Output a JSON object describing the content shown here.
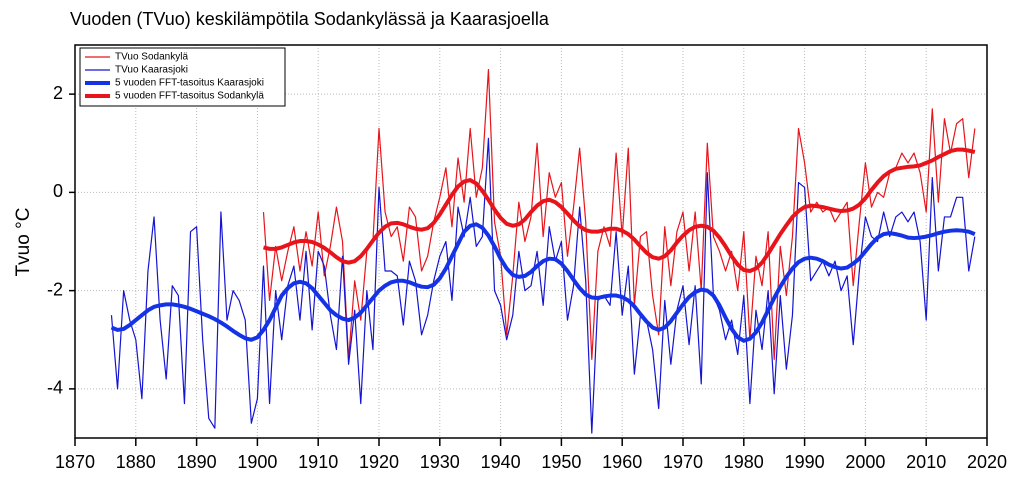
{
  "chart_data": {
    "type": "line",
    "title": "Vuoden (TVuo) keskilämpötila Sodankylässä ja Kaarasjoella",
    "y_label": "Tvuo °C",
    "xlim": [
      1870,
      2020
    ],
    "xticks": [
      1870,
      1880,
      1890,
      1900,
      1910,
      1920,
      1930,
      1940,
      1950,
      1960,
      1970,
      1980,
      1990,
      2000,
      2010,
      2020
    ],
    "ylim": [
      -5,
      3
    ],
    "yticks": [
      -4,
      -2,
      0,
      2
    ],
    "grid": true,
    "legend": "upper left",
    "x": [
      1876,
      1877,
      1878,
      1879,
      1880,
      1881,
      1882,
      1883,
      1884,
      1885,
      1886,
      1887,
      1888,
      1889,
      1890,
      1891,
      1892,
      1893,
      1894,
      1895,
      1896,
      1897,
      1898,
      1899,
      1900,
      1901,
      1902,
      1903,
      1904,
      1905,
      1906,
      1907,
      1908,
      1909,
      1910,
      1911,
      1912,
      1913,
      1914,
      1915,
      1916,
      1917,
      1918,
      1919,
      1920,
      1921,
      1922,
      1923,
      1924,
      1925,
      1926,
      1927,
      1928,
      1929,
      1930,
      1931,
      1932,
      1933,
      1934,
      1935,
      1936,
      1937,
      1938,
      1939,
      1940,
      1941,
      1942,
      1943,
      1944,
      1945,
      1946,
      1947,
      1948,
      1949,
      1950,
      1951,
      1952,
      1953,
      1954,
      1955,
      1956,
      1957,
      1958,
      1959,
      1960,
      1961,
      1962,
      1963,
      1964,
      1965,
      1966,
      1967,
      1968,
      1969,
      1970,
      1971,
      1972,
      1973,
      1974,
      1975,
      1976,
      1977,
      1978,
      1979,
      1980,
      1981,
      1982,
      1983,
      1984,
      1985,
      1986,
      1987,
      1988,
      1989,
      1990,
      1991,
      1992,
      1993,
      1994,
      1995,
      1996,
      1997,
      1998,
      1999,
      2000,
      2001,
      2002,
      2003,
      2004,
      2005,
      2006,
      2007,
      2008,
      2009,
      2010,
      2011,
      2012,
      2013,
      2014,
      2015,
      2016,
      2017,
      2018
    ],
    "series": [
      {
        "name": "TVuo Sodankylä",
        "color": "#e8141b",
        "line_width": 1.2,
        "values": [
          null,
          null,
          null,
          null,
          null,
          null,
          null,
          null,
          null,
          null,
          null,
          null,
          null,
          null,
          null,
          null,
          null,
          null,
          null,
          null,
          null,
          null,
          null,
          null,
          null,
          -0.4,
          -2.2,
          -1.1,
          -1.8,
          -1.2,
          -0.7,
          -1.6,
          -0.8,
          -1.5,
          -0.4,
          -1.7,
          -1.1,
          -0.3,
          -1.0,
          -3.4,
          -1.8,
          -2.6,
          -1.2,
          -1.0,
          1.3,
          -0.4,
          -0.9,
          -0.7,
          -1.4,
          -0.3,
          -0.5,
          -1.6,
          -1.3,
          -0.6,
          -0.1,
          0.5,
          -0.7,
          0.7,
          -0.2,
          1.3,
          -0.1,
          0.5,
          2.5,
          -0.6,
          -1.3,
          -2.9,
          -1.7,
          -0.2,
          -1.0,
          -0.5,
          1.0,
          -0.9,
          0.4,
          -0.1,
          0.2,
          -1.3,
          -0.3,
          0.9,
          -0.6,
          -3.4,
          -1.2,
          -0.7,
          -1.1,
          0.8,
          -0.9,
          0.9,
          -2.3,
          -0.9,
          -0.8,
          -2.1,
          -2.9,
          -0.7,
          -1.9,
          -0.8,
          -0.4,
          -1.6,
          -0.4,
          -2.0,
          1.0,
          -0.9,
          -1.2,
          -1.6,
          -1.2,
          -2.0,
          -0.8,
          -3.0,
          -1.3,
          -1.9,
          -0.8,
          -3.4,
          -1.1,
          -2.1,
          -0.9,
          1.3,
          0.6,
          -0.4,
          -0.2,
          -0.4,
          -0.3,
          -0.6,
          -0.4,
          -0.2,
          -1.9,
          -0.6,
          0.6,
          -0.3,
          0.0,
          -0.1,
          0.4,
          0.5,
          0.8,
          0.6,
          0.8,
          0.4,
          -0.4,
          1.7,
          -0.2,
          1.5,
          0.8,
          1.4,
          1.5,
          0.3,
          1.3
        ]
      },
      {
        "name": "TVuo Kaarasjoki",
        "color": "#1414d2",
        "line_width": 1.2,
        "values": [
          -2.5,
          -4.0,
          -2.0,
          -2.6,
          -3.0,
          -4.2,
          -1.6,
          -0.5,
          -2.6,
          -3.8,
          -1.9,
          -2.1,
          -4.3,
          -0.8,
          -0.7,
          -3.0,
          -4.6,
          -4.8,
          -0.4,
          -2.6,
          -2.0,
          -2.2,
          -2.6,
          -4.7,
          -4.2,
          -1.5,
          -4.3,
          -2.0,
          -3.0,
          -1.9,
          -1.5,
          -2.6,
          -1.2,
          -2.8,
          -1.2,
          -1.5,
          -2.5,
          -3.2,
          -1.3,
          -3.5,
          -2.4,
          -4.3,
          -2.0,
          -3.2,
          0.1,
          -1.6,
          -1.6,
          -1.7,
          -2.7,
          -1.4,
          -1.8,
          -2.9,
          -2.5,
          -1.8,
          -1.3,
          -1.0,
          -2.2,
          -0.3,
          -0.9,
          -0.1,
          -1.1,
          -0.9,
          1.1,
          -2.0,
          -2.3,
          -3.0,
          -2.5,
          -1.2,
          -2.0,
          -1.9,
          -1.2,
          -2.3,
          -0.7,
          -1.4,
          -1.0,
          -2.6,
          -1.9,
          -0.3,
          -1.8,
          -4.9,
          -2.2,
          -2.1,
          -2.3,
          -0.8,
          -2.5,
          -1.5,
          -3.7,
          -2.5,
          -2.6,
          -3.2,
          -4.4,
          -2.2,
          -3.5,
          -2.4,
          -1.9,
          -3.1,
          -1.9,
          -3.9,
          0.4,
          -2.1,
          -2.4,
          -3.0,
          -2.6,
          -3.3,
          -2.1,
          -4.3,
          -2.4,
          -3.2,
          -2.0,
          -4.1,
          -2.1,
          -3.6,
          -2.5,
          0.2,
          0.1,
          -1.8,
          -1.6,
          -1.4,
          -1.7,
          -1.4,
          -2.0,
          -1.7,
          -3.1,
          -1.6,
          -0.5,
          -0.9,
          -1.0,
          -0.4,
          -0.9,
          -0.5,
          -0.4,
          -0.6,
          -0.4,
          -1.0,
          -2.6,
          0.3,
          -1.6,
          -0.5,
          -0.5,
          -0.1,
          -0.1,
          -1.6,
          -0.9
        ]
      },
      {
        "name": "5 vuoden FFT-tasoitus Kaarasjoki",
        "color": "#1432e6",
        "line_width": 4,
        "values": [
          -2.75,
          -2.8,
          -2.78,
          -2.7,
          -2.6,
          -2.5,
          -2.4,
          -2.33,
          -2.3,
          -2.28,
          -2.28,
          -2.3,
          -2.33,
          -2.37,
          -2.42,
          -2.47,
          -2.52,
          -2.58,
          -2.65,
          -2.73,
          -2.82,
          -2.9,
          -2.97,
          -3.0,
          -2.95,
          -2.8,
          -2.6,
          -2.35,
          -2.1,
          -1.95,
          -1.85,
          -1.82,
          -1.85,
          -1.95,
          -2.1,
          -2.25,
          -2.4,
          -2.5,
          -2.57,
          -2.6,
          -2.55,
          -2.45,
          -2.3,
          -2.15,
          -2.0,
          -1.9,
          -1.83,
          -1.8,
          -1.8,
          -1.83,
          -1.88,
          -1.92,
          -1.93,
          -1.88,
          -1.75,
          -1.55,
          -1.3,
          -1.05,
          -0.8,
          -0.68,
          -0.65,
          -0.72,
          -0.88,
          -1.1,
          -1.35,
          -1.55,
          -1.68,
          -1.72,
          -1.7,
          -1.62,
          -1.5,
          -1.4,
          -1.35,
          -1.36,
          -1.45,
          -1.6,
          -1.78,
          -1.95,
          -2.08,
          -2.14,
          -2.15,
          -2.12,
          -2.1,
          -2.1,
          -2.13,
          -2.2,
          -2.32,
          -2.48,
          -2.63,
          -2.75,
          -2.8,
          -2.75,
          -2.62,
          -2.45,
          -2.28,
          -2.13,
          -2.03,
          -1.98,
          -2.0,
          -2.1,
          -2.3,
          -2.55,
          -2.78,
          -2.95,
          -3.02,
          -2.98,
          -2.85,
          -2.65,
          -2.4,
          -2.15,
          -1.92,
          -1.72,
          -1.55,
          -1.42,
          -1.35,
          -1.33,
          -1.35,
          -1.4,
          -1.47,
          -1.52,
          -1.55,
          -1.53,
          -1.45,
          -1.35,
          -1.2,
          -1.05,
          -0.92,
          -0.85,
          -0.83,
          -0.85,
          -0.88,
          -0.92,
          -0.93,
          -0.92,
          -0.9,
          -0.87,
          -0.83,
          -0.8,
          -0.78,
          -0.77,
          -0.78,
          -0.8,
          -0.85
        ]
      },
      {
        "name": "5 vuoden FFT-tasoitus Sodankylä",
        "color": "#e8141b",
        "line_width": 4,
        "values": [
          null,
          null,
          null,
          null,
          null,
          null,
          null,
          null,
          null,
          null,
          null,
          null,
          null,
          null,
          null,
          null,
          null,
          null,
          null,
          null,
          null,
          null,
          null,
          null,
          null,
          -1.12,
          -1.15,
          -1.15,
          -1.12,
          -1.07,
          -1.02,
          -0.99,
          -0.99,
          -1.01,
          -1.06,
          -1.13,
          -1.22,
          -1.32,
          -1.4,
          -1.43,
          -1.4,
          -1.3,
          -1.15,
          -0.98,
          -0.82,
          -0.7,
          -0.63,
          -0.62,
          -0.65,
          -0.7,
          -0.74,
          -0.76,
          -0.73,
          -0.62,
          -0.45,
          -0.25,
          -0.05,
          0.12,
          0.22,
          0.25,
          0.18,
          0.03,
          -0.15,
          -0.35,
          -0.52,
          -0.64,
          -0.68,
          -0.65,
          -0.55,
          -0.4,
          -0.27,
          -0.18,
          -0.15,
          -0.2,
          -0.3,
          -0.43,
          -0.57,
          -0.69,
          -0.77,
          -0.8,
          -0.8,
          -0.77,
          -0.74,
          -0.74,
          -0.78,
          -0.85,
          -0.96,
          -1.1,
          -1.23,
          -1.32,
          -1.35,
          -1.3,
          -1.18,
          -1.02,
          -0.88,
          -0.77,
          -0.7,
          -0.68,
          -0.7,
          -0.78,
          -0.92,
          -1.1,
          -1.3,
          -1.47,
          -1.58,
          -1.6,
          -1.55,
          -1.43,
          -1.25,
          -1.05,
          -0.85,
          -0.67,
          -0.5,
          -0.38,
          -0.3,
          -0.27,
          -0.28,
          -0.3,
          -0.33,
          -0.36,
          -0.38,
          -0.37,
          -0.33,
          -0.25,
          -0.12,
          0.05,
          0.2,
          0.33,
          0.42,
          0.48,
          0.5,
          0.52,
          0.53,
          0.55,
          0.6,
          0.65,
          0.72,
          0.78,
          0.84,
          0.87,
          0.87,
          0.85,
          0.82
        ]
      }
    ]
  }
}
